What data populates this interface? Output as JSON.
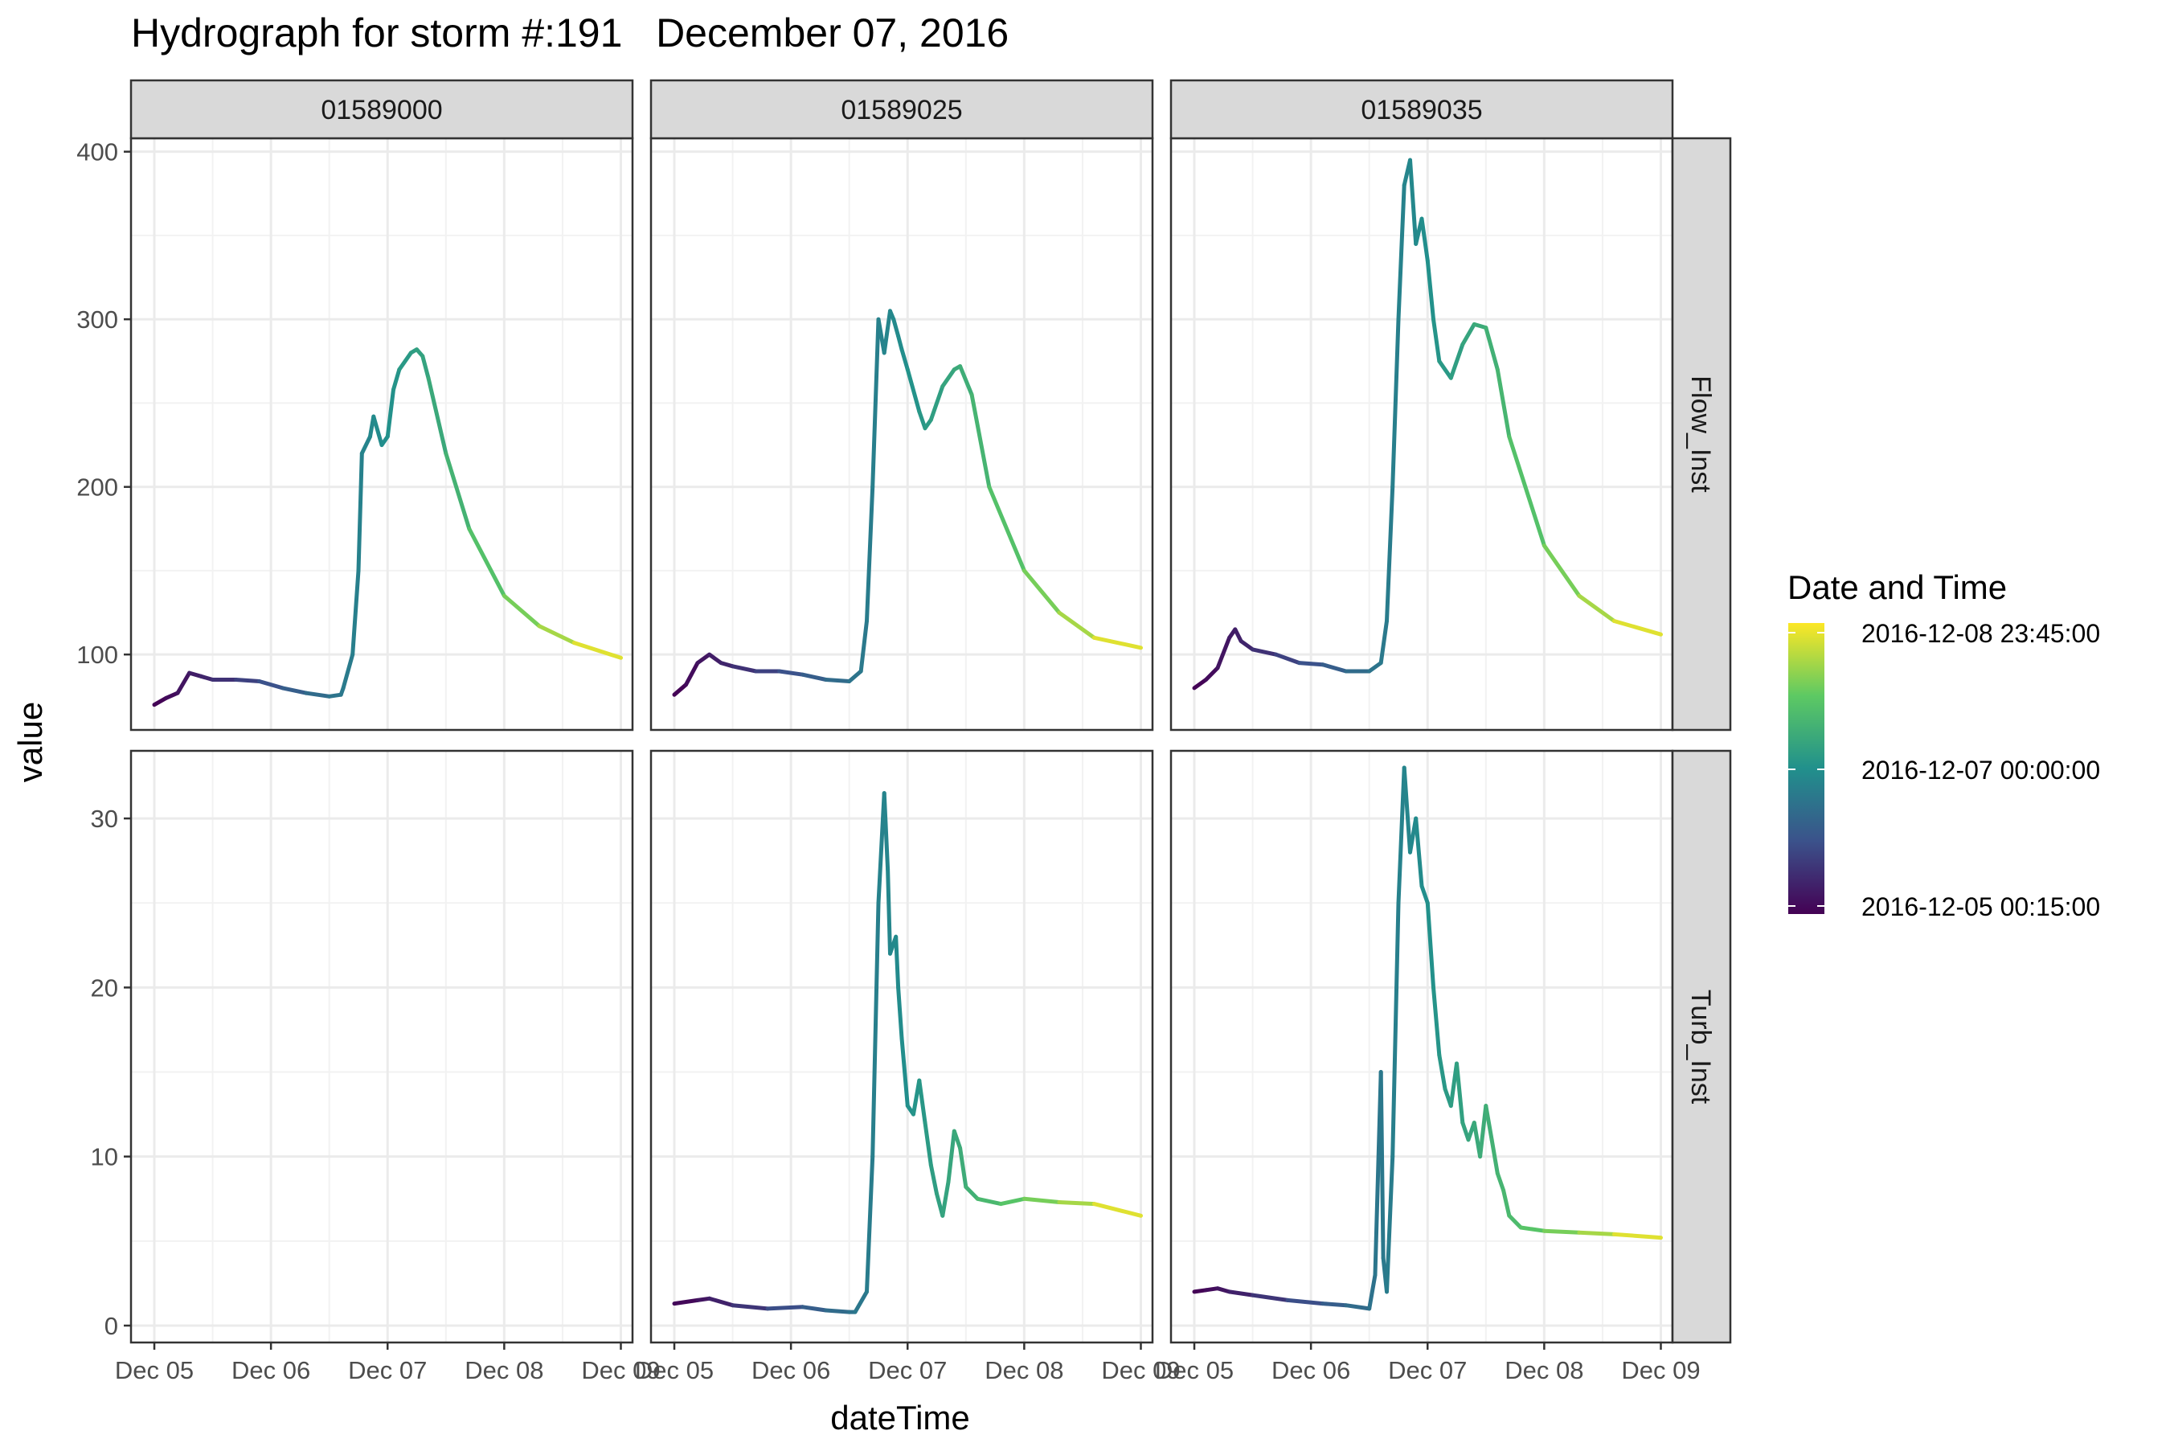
{
  "chart_data": {
    "type": "line",
    "title": "Hydrograph for storm #:191   December 07, 2016",
    "xlabel": "dateTime",
    "ylabel": "value",
    "facets": {
      "columns": [
        "01589000",
        "01589025",
        "01589035"
      ],
      "rows": [
        "Flow_Inst",
        "Turb_Inst"
      ]
    },
    "x_ticks": [
      "Dec 05",
      "Dec 06",
      "Dec 07",
      "Dec 08",
      "Dec 09"
    ],
    "x_domain_days": [
      4.8,
      9.1
    ],
    "rows_axes": {
      "Flow_Inst": {
        "ylim": [
          55,
          408
        ],
        "ticks": [
          100,
          200,
          300,
          400
        ]
      },
      "Turb_Inst": {
        "ylim": [
          -1,
          34
        ],
        "ticks": [
          0,
          10,
          20,
          30
        ]
      }
    },
    "legend": {
      "title": "Date and Time",
      "position": "right",
      "labels": [
        "2016-12-08 23:45:00",
        "2016-12-07 00:00:00",
        "2016-12-05 00:15:00"
      ],
      "color_scale": "viridis",
      "colors": [
        "#440154",
        "#3b528b",
        "#21908c",
        "#5dc963",
        "#fde725"
      ]
    },
    "grid": true,
    "series": [
      {
        "column": "01589000",
        "row": "Flow_Inst",
        "x": [
          5.0,
          5.1,
          5.2,
          5.3,
          5.4,
          5.5,
          5.7,
          5.9,
          6.1,
          6.3,
          6.5,
          6.6,
          6.62,
          6.7,
          6.75,
          6.78,
          6.85,
          6.88,
          6.95,
          7.0,
          7.05,
          7.1,
          7.2,
          7.25,
          7.3,
          7.35,
          7.5,
          7.7,
          8.0,
          8.3,
          8.6,
          9.0
        ],
        "y": [
          70,
          74,
          77,
          89,
          87,
          85,
          85,
          84,
          80,
          77,
          75,
          76,
          80,
          100,
          150,
          220,
          230,
          242,
          225,
          230,
          258,
          270,
          280,
          282,
          278,
          265,
          220,
          175,
          135,
          117,
          107,
          98
        ]
      },
      {
        "column": "01589025",
        "row": "Flow_Inst",
        "x": [
          5.0,
          5.1,
          5.2,
          5.3,
          5.4,
          5.5,
          5.7,
          5.9,
          6.1,
          6.3,
          6.5,
          6.6,
          6.65,
          6.7,
          6.75,
          6.8,
          6.85,
          6.88,
          6.92,
          6.95,
          7.0,
          7.1,
          7.15,
          7.2,
          7.3,
          7.4,
          7.45,
          7.55,
          7.7,
          8.0,
          8.3,
          8.6,
          9.0
        ],
        "y": [
          76,
          82,
          95,
          100,
          95,
          93,
          90,
          90,
          88,
          85,
          84,
          90,
          120,
          200,
          300,
          280,
          305,
          300,
          290,
          282,
          270,
          245,
          235,
          240,
          260,
          270,
          272,
          255,
          200,
          150,
          125,
          110,
          104
        ]
      },
      {
        "column": "01589035",
        "row": "Flow_Inst",
        "x": [
          5.0,
          5.1,
          5.2,
          5.3,
          5.35,
          5.4,
          5.5,
          5.7,
          5.9,
          6.1,
          6.3,
          6.5,
          6.6,
          6.65,
          6.7,
          6.75,
          6.8,
          6.85,
          6.9,
          6.95,
          7.0,
          7.05,
          7.1,
          7.2,
          7.3,
          7.4,
          7.5,
          7.6,
          7.7,
          8.0,
          8.3,
          8.6,
          9.0
        ],
        "y": [
          80,
          85,
          92,
          110,
          115,
          108,
          103,
          100,
          95,
          94,
          90,
          90,
          95,
          120,
          200,
          300,
          380,
          395,
          345,
          360,
          335,
          300,
          275,
          265,
          285,
          297,
          295,
          270,
          230,
          165,
          135,
          120,
          112
        ]
      },
      {
        "column": "01589025",
        "row": "Turb_Inst",
        "x": [
          5.0,
          5.2,
          5.3,
          5.5,
          5.8,
          6.1,
          6.3,
          6.5,
          6.55,
          6.65,
          6.7,
          6.75,
          6.8,
          6.83,
          6.85,
          6.9,
          6.92,
          6.95,
          7.0,
          7.05,
          7.1,
          7.15,
          7.2,
          7.25,
          7.3,
          7.35,
          7.4,
          7.45,
          7.5,
          7.6,
          7.8,
          8.0,
          8.3,
          8.6,
          9.0
        ],
        "y": [
          1.3,
          1.5,
          1.6,
          1.2,
          1.0,
          1.1,
          0.9,
          0.8,
          0.8,
          2.0,
          10.0,
          25.0,
          31.5,
          27.0,
          22.0,
          23.0,
          20.0,
          17.0,
          13.0,
          12.5,
          14.5,
          12.0,
          9.5,
          7.8,
          6.5,
          8.5,
          11.5,
          10.5,
          8.2,
          7.5,
          7.2,
          7.5,
          7.3,
          7.2,
          6.5
        ]
      },
      {
        "column": "01589035",
        "row": "Turb_Inst",
        "x": [
          5.0,
          5.1,
          5.2,
          5.3,
          5.5,
          5.8,
          6.1,
          6.3,
          6.5,
          6.55,
          6.6,
          6.62,
          6.65,
          6.7,
          6.75,
          6.8,
          6.85,
          6.9,
          6.95,
          7.0,
          7.05,
          7.1,
          7.15,
          7.2,
          7.25,
          7.3,
          7.35,
          7.4,
          7.45,
          7.5,
          7.55,
          7.6,
          7.65,
          7.7,
          7.8,
          8.0,
          8.3,
          8.6,
          9.0
        ],
        "y": [
          2.0,
          2.1,
          2.2,
          2.0,
          1.8,
          1.5,
          1.3,
          1.2,
          1.0,
          3.0,
          15.0,
          4.0,
          2.0,
          10.0,
          25.0,
          33.0,
          28.0,
          30.0,
          26.0,
          25.0,
          20.0,
          16.0,
          14.0,
          13.0,
          15.5,
          12.0,
          11.0,
          12.0,
          10.0,
          13.0,
          11.0,
          9.0,
          8.0,
          6.5,
          5.8,
          5.6,
          5.5,
          5.4,
          5.2
        ]
      }
    ]
  }
}
